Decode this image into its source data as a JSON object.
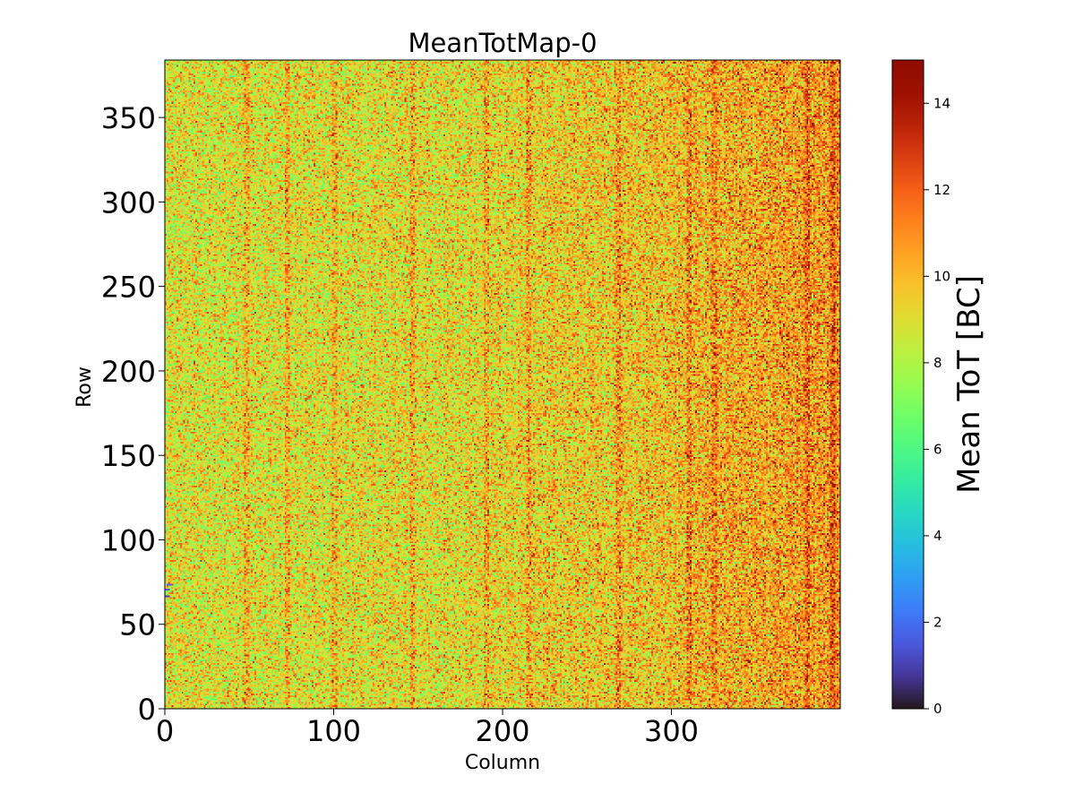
{
  "chart_data": {
    "type": "heatmap",
    "title": "MeanTotMap-0",
    "xlabel": "Column",
    "ylabel": "Row",
    "xlim": [
      0,
      400
    ],
    "ylim": [
      0,
      384
    ],
    "x_ticks": [
      0,
      100,
      200,
      300
    ],
    "y_ticks": [
      0,
      50,
      100,
      150,
      200,
      250,
      300,
      350
    ],
    "grid": false,
    "colorbar": {
      "label": "Mean ToT [BC]",
      "range": [
        0,
        15
      ],
      "ticks": [
        0,
        2,
        4,
        6,
        8,
        10,
        12,
        14
      ],
      "colormap": "turbo"
    },
    "matrix_shape": {
      "columns": 400,
      "rows": 384
    },
    "value_summary": {
      "typical_range": [
        7,
        14
      ],
      "overall_mean": 9.5,
      "mean_increases_toward_high_columns": true,
      "right_edge_mean": 11.5,
      "elevated_columns": [
        48,
        72,
        100,
        146,
        190,
        215,
        268,
        310,
        325,
        380,
        395
      ],
      "low_value_pixels": [
        {
          "column": 1,
          "row": 66,
          "value": 1.0
        },
        {
          "column": 1,
          "row": 70,
          "value": 1.5
        },
        {
          "column": 2,
          "row": 73,
          "value": 2.0
        }
      ]
    }
  }
}
